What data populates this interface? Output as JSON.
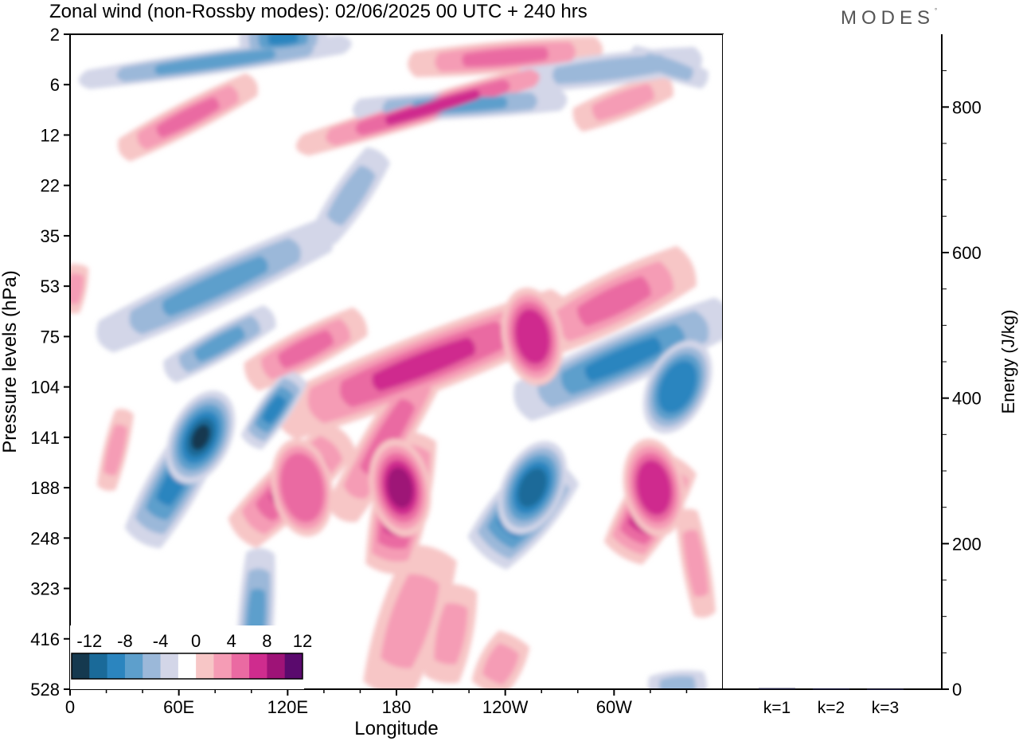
{
  "title": "Zonal wind (non-Rossby modes):  02/06/2025  00 UTC  + 240 hrs",
  "logo": {
    "text": "MODES",
    "mark": "°"
  },
  "chart_data": [
    {
      "type": "heatmap",
      "subtype": "filled-contour",
      "xlabel": "Longitude",
      "ylabel": "Pressure levels (hPa)",
      "x_ticks": [
        "0",
        "60E",
        "120E",
        "180",
        "120W",
        "60W"
      ],
      "x_tick_degrees": [
        0,
        60,
        120,
        180,
        240,
        300
      ],
      "xlim": [
        0,
        360
      ],
      "y_ticks": [
        "2",
        "6",
        "12",
        "22",
        "35",
        "53",
        "75",
        "104",
        "141",
        "188",
        "248",
        "323",
        "416",
        "528"
      ],
      "y_scale": "levels (top to bottom)",
      "colorbar": {
        "labels": [
          "-12",
          "-8",
          "-4",
          "0",
          "4",
          "8",
          "12"
        ],
        "colors": [
          "#15394f",
          "#1a6a99",
          "#2b85bf",
          "#5d9fcc",
          "#9bb8d9",
          "#d3d6e8",
          "#ffffff",
          "#f7c6c6",
          "#f59cb5",
          "#ea6aa2",
          "#cf2c8e",
          "#9e1377",
          "#5a0a6d"
        ],
        "placement": "bottom-left"
      },
      "features": [
        {
          "name": "negative-core",
          "lon": 72,
          "level": "141",
          "value": -12
        },
        {
          "name": "negative-core",
          "lon": 255,
          "level": "188",
          "value": -10
        },
        {
          "name": "negative-core",
          "lon": 335,
          "level": "104",
          "value": -8
        },
        {
          "name": "positive-core",
          "lon": 182,
          "level": "188",
          "value": 10
        },
        {
          "name": "positive-core",
          "lon": 322,
          "level": "188",
          "value": 8
        },
        {
          "name": "positive-core",
          "lon": 255,
          "level": "75",
          "value": 8
        },
        {
          "name": "positive-core",
          "lon": 128,
          "level": "188",
          "value": 6
        }
      ]
    },
    {
      "type": "bar",
      "categories": [
        "k=1",
        "k=2",
        "k=3"
      ],
      "values": [
        1.5,
        1.2,
        0.6
      ],
      "ylabel": "Energy (J/kg)",
      "ylim": [
        0,
        900
      ],
      "y_ticks": [
        "0",
        "200",
        "400",
        "600",
        "800"
      ],
      "y_axis_side": "right",
      "bar_color": "#1a1a3a"
    }
  ]
}
